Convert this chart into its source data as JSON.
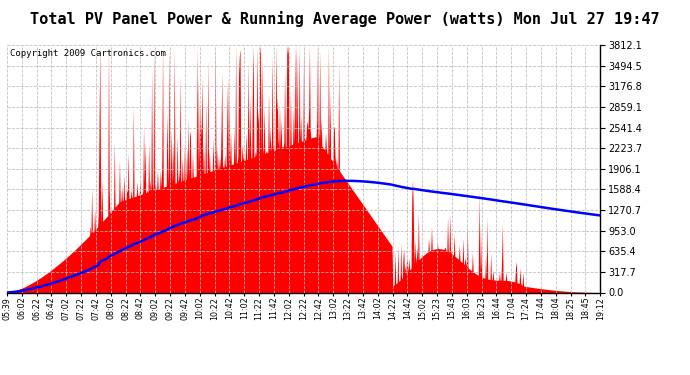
{
  "title": "Total PV Panel Power & Running Average Power (watts) Mon Jul 27 19:47",
  "copyright": "Copyright 2009 Cartronics.com",
  "y_max": 3812.1,
  "y_min": 0.0,
  "y_ticks": [
    0.0,
    317.7,
    635.4,
    953.0,
    1270.7,
    1588.4,
    1906.1,
    2223.7,
    2541.4,
    2859.1,
    3176.8,
    3494.5,
    3812.1
  ],
  "x_labels": [
    "05:39",
    "06:02",
    "06:22",
    "06:42",
    "07:02",
    "07:22",
    "07:42",
    "08:02",
    "08:22",
    "08:42",
    "09:02",
    "09:22",
    "09:42",
    "10:02",
    "10:22",
    "10:42",
    "11:02",
    "11:22",
    "11:42",
    "12:02",
    "12:22",
    "12:42",
    "13:02",
    "13:22",
    "13:42",
    "14:02",
    "14:22",
    "14:42",
    "15:02",
    "15:23",
    "15:43",
    "16:03",
    "16:23",
    "16:44",
    "17:04",
    "17:24",
    "17:44",
    "18:04",
    "18:25",
    "18:45",
    "19:12"
  ],
  "background_color": "#ffffff",
  "fill_color": "#ff0000",
  "line_color": "#0000ff",
  "grid_color": "#bbbbbb",
  "title_fontsize": 11,
  "copyright_fontsize": 6.5
}
